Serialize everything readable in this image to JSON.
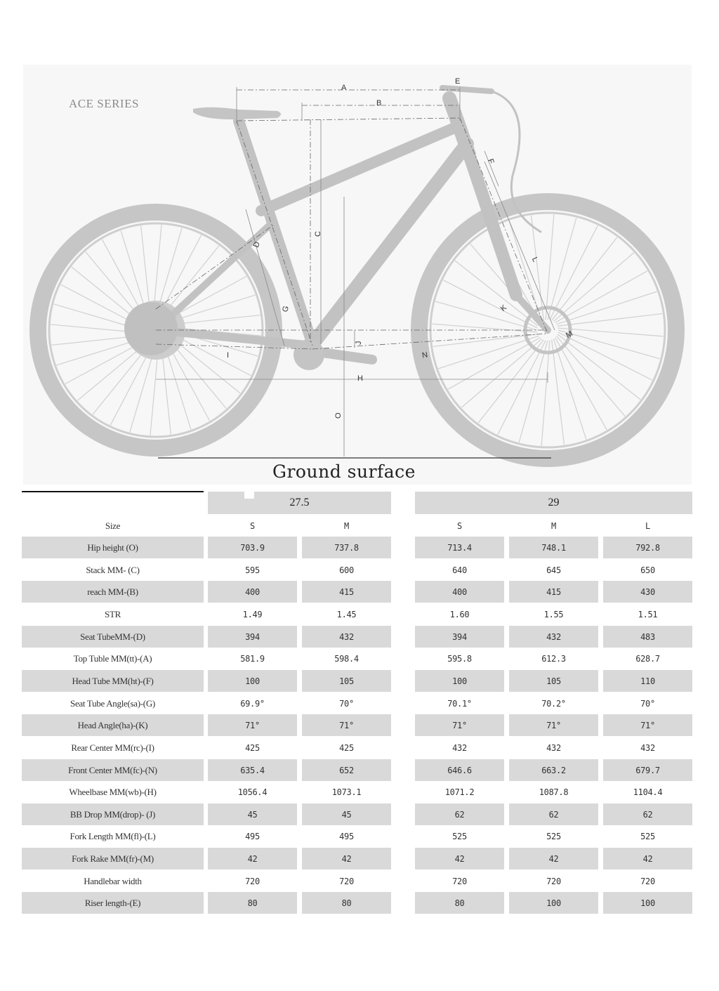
{
  "diagram": {
    "series_title": "ACE SERIES",
    "ground_label": "Ground surface",
    "dimension_letters": {
      "A": "A",
      "B": "B",
      "C": "C",
      "D": "D",
      "E": "E",
      "F": "F",
      "G": "G",
      "H": "H",
      "I": "I",
      "J": "J",
      "K": "K",
      "L": "L",
      "M": "M",
      "N": "N",
      "O": "O"
    }
  },
  "table": {
    "groups": [
      {
        "label": "27.5",
        "sizes": [
          "S",
          "M"
        ]
      },
      {
        "label": "29",
        "sizes": [
          "S",
          "M",
          "L"
        ]
      }
    ],
    "size_header": "Size",
    "rows": [
      {
        "label": "Hip height (O)",
        "values": [
          "703.9",
          "737.8",
          "713.4",
          "748.1",
          "792.8"
        ]
      },
      {
        "label": "Stack MM- (C)",
        "values": [
          "595",
          "600",
          "640",
          "645",
          "650"
        ]
      },
      {
        "label": "reach MM-(B)",
        "values": [
          "400",
          "415",
          "400",
          "415",
          "430"
        ]
      },
      {
        "label": "STR",
        "values": [
          "1.49",
          "1.45",
          "1.60",
          "1.55",
          "1.51"
        ]
      },
      {
        "label": "Seat TubeMM-(D)",
        "values": [
          "394",
          "432",
          "394",
          "432",
          "483"
        ]
      },
      {
        "label": "Top Tuble MM(tt)-(A)",
        "values": [
          "581.9",
          "598.4",
          "595.8",
          "612.3",
          "628.7"
        ]
      },
      {
        "label": "Head Tube MM(ht)-(F)",
        "values": [
          "100",
          "105",
          "100",
          "105",
          "110"
        ]
      },
      {
        "label": "Seat Tube Angle(sa)-(G)",
        "values": [
          "69.9°",
          "70°",
          "70.1°",
          "70.2°",
          "70°"
        ]
      },
      {
        "label": "Head Angle(ha)-(K)",
        "values": [
          "71°",
          "71°",
          "71°",
          "71°",
          "71°"
        ]
      },
      {
        "label": "Rear Center MM(rc)-(I)",
        "values": [
          "425",
          "425",
          "432",
          "432",
          "432"
        ]
      },
      {
        "label": "Front Center MM(fc)-(N)",
        "values": [
          "635.4",
          "652",
          "646.6",
          "663.2",
          "679.7"
        ]
      },
      {
        "label": "Wheelbase MM(wb)-(H)",
        "values": [
          "1056.4",
          "1073.1",
          "1071.2",
          "1087.8",
          "1104.4"
        ]
      },
      {
        "label": "BB Drop MM(drop)- (J)",
        "values": [
          "45",
          "45",
          "62",
          "62",
          "62"
        ]
      },
      {
        "label": "Fork Length MM(fl)-(L)",
        "values": [
          "495",
          "495",
          "525",
          "525",
          "525"
        ]
      },
      {
        "label": "Fork Rake MM(fr)-(M)",
        "values": [
          "42",
          "42",
          "42",
          "42",
          "42"
        ]
      },
      {
        "label": "Handlebar width",
        "values": [
          "720",
          "720",
          "720",
          "720",
          "720"
        ]
      },
      {
        "label": "Riser length-(E)",
        "values": [
          "80",
          "80",
          "80",
          "100",
          "100"
        ]
      }
    ]
  }
}
